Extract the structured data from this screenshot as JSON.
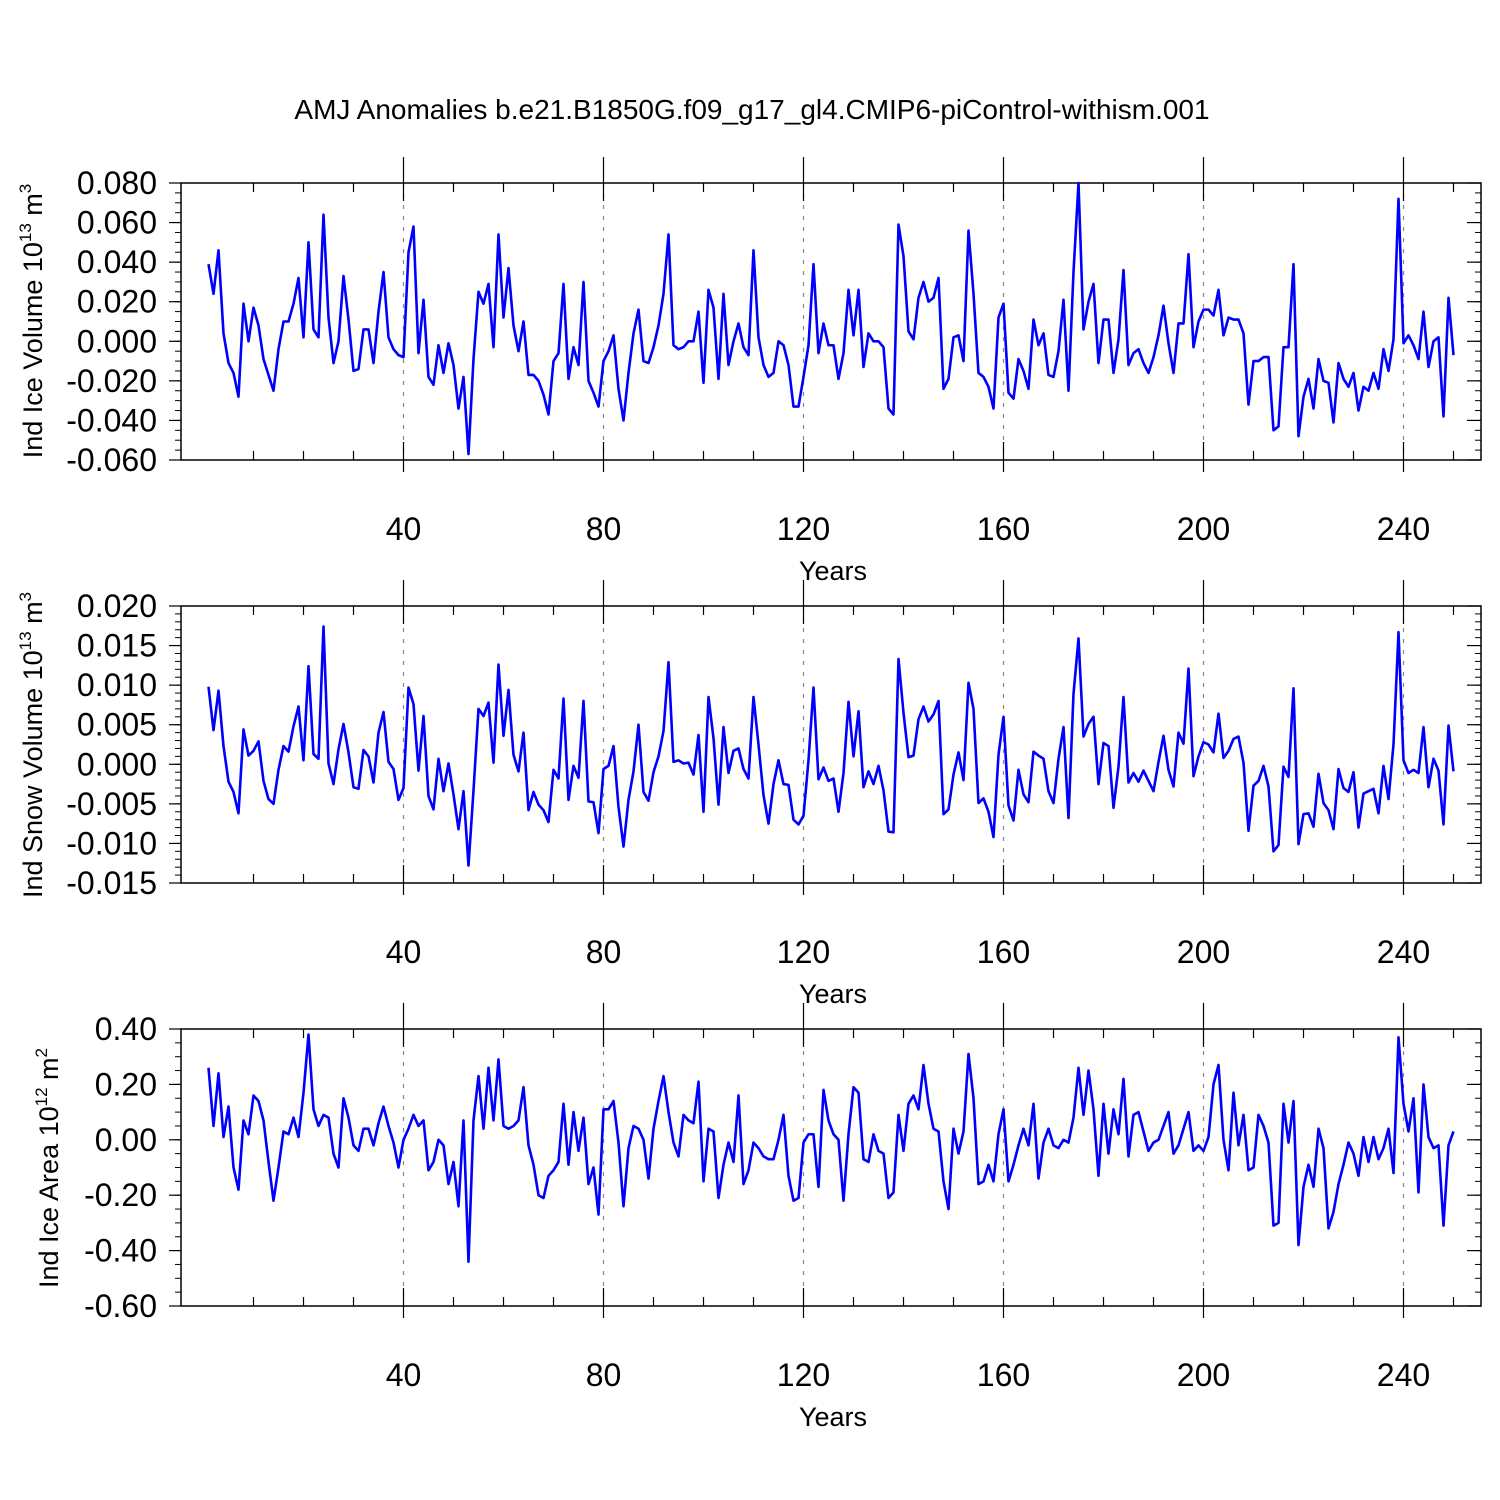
{
  "title": "AMJ Anomalies b.e21.B1850G.f09_g17_gl4.CMIP6-piControl-withism.001",
  "colors": {
    "series": "#0000ff",
    "axis": "#000000",
    "grid": "#888888",
    "background": "#ffffff"
  },
  "chart_data": [
    {
      "type": "line",
      "ylabel_main": "Ind Ice Volume 10",
      "ylabel_exp": "13",
      "ylabel_unit": " m",
      "ylabel_unit_exp": "3",
      "xlabel": "Years",
      "xlim": [
        1,
        251
      ],
      "ylim": [
        -0.06,
        0.08
      ],
      "x_ticks": [
        40,
        80,
        120,
        160,
        200,
        240
      ],
      "x_tick_labels": [
        "40",
        "80",
        "120",
        "160",
        "200",
        "240"
      ],
      "y_ticks": [
        -0.06,
        -0.04,
        -0.02,
        0.0,
        0.02,
        0.04,
        0.06,
        0.08
      ],
      "y_tick_labels": [
        "-0.060",
        "-0.040",
        "-0.020",
        "0.000",
        "0.020",
        "0.040",
        "0.060",
        "0.080"
      ],
      "y_minor_step": 0.005,
      "dashed_grid_x": [
        40,
        80,
        120,
        160,
        200,
        240
      ],
      "x_start": 1,
      "values": [
        0.039,
        0.024,
        0.046,
        0.004,
        -0.011,
        -0.016,
        -0.028,
        0.019,
        0.0,
        0.017,
        0.008,
        -0.009,
        -0.017,
        -0.025,
        -0.004,
        0.01,
        0.01,
        0.019,
        0.032,
        0.002,
        0.05,
        0.006,
        0.002,
        0.064,
        0.012,
        -0.011,
        0.0,
        0.033,
        0.011,
        -0.015,
        -0.014,
        0.006,
        0.006,
        -0.011,
        0.015,
        0.035,
        0.002,
        -0.004,
        -0.007,
        -0.008,
        0.045,
        0.058,
        -0.006,
        0.021,
        -0.018,
        -0.022,
        -0.002,
        -0.016,
        -0.001,
        -0.012,
        -0.034,
        -0.018,
        -0.057,
        -0.009,
        0.025,
        0.019,
        0.029,
        -0.003,
        0.054,
        0.012,
        0.037,
        0.008,
        -0.005,
        0.01,
        -0.017,
        -0.017,
        -0.02,
        -0.027,
        -0.037,
        -0.01,
        -0.006,
        0.029,
        -0.019,
        -0.003,
        -0.012,
        0.03,
        -0.02,
        -0.026,
        -0.033,
        -0.01,
        -0.005,
        0.003,
        -0.024,
        -0.04,
        -0.016,
        0.004,
        0.016,
        -0.01,
        -0.011,
        -0.003,
        0.008,
        0.024,
        0.054,
        -0.002,
        -0.004,
        -0.003,
        0.0,
        0.0,
        0.015,
        -0.021,
        0.026,
        0.017,
        -0.019,
        0.024,
        -0.012,
        0.0,
        0.009,
        -0.003,
        -0.007,
        0.046,
        0.002,
        -0.012,
        -0.018,
        -0.016,
        0.0,
        -0.002,
        -0.012,
        -0.033,
        -0.033,
        -0.018,
        -0.002,
        0.039,
        -0.006,
        0.009,
        -0.002,
        -0.002,
        -0.019,
        -0.006,
        0.026,
        0.003,
        0.026,
        -0.013,
        0.004,
        0.0,
        0.0,
        -0.003,
        -0.034,
        -0.037,
        0.059,
        0.043,
        0.005,
        0.001,
        0.022,
        0.03,
        0.02,
        0.022,
        0.032,
        -0.024,
        -0.019,
        0.002,
        0.003,
        -0.01,
        0.056,
        0.024,
        -0.016,
        -0.018,
        -0.023,
        -0.034,
        0.012,
        0.019,
        -0.026,
        -0.029,
        -0.009,
        -0.015,
        -0.024,
        0.011,
        -0.002,
        0.004,
        -0.017,
        -0.018,
        -0.005,
        0.021,
        -0.025,
        0.035,
        0.08,
        0.006,
        0.02,
        0.029,
        -0.011,
        0.011,
        0.011,
        -0.016,
        0.001,
        0.036,
        -0.012,
        -0.006,
        -0.004,
        -0.011,
        -0.016,
        -0.008,
        0.003,
        0.018,
        -0.001,
        -0.016,
        0.009,
        0.009,
        0.044,
        -0.003,
        0.01,
        0.016,
        0.016,
        0.013,
        0.026,
        0.003,
        0.012,
        0.011,
        0.011,
        0.004,
        -0.032,
        -0.01,
        -0.01,
        -0.008,
        -0.008,
        -0.045,
        -0.043,
        -0.003,
        -0.003,
        0.039,
        -0.048,
        -0.028,
        -0.019,
        -0.034,
        -0.009,
        -0.02,
        -0.021,
        -0.041,
        -0.011,
        -0.019,
        -0.023,
        -0.016,
        -0.035,
        -0.023,
        -0.025,
        -0.016,
        -0.024,
        -0.004,
        -0.015,
        0.001,
        0.072,
        -0.001,
        0.003,
        -0.002,
        -0.009,
        0.015,
        -0.013,
        0.0,
        0.002,
        -0.038,
        0.022,
        -0.007
      ]
    },
    {
      "type": "line",
      "ylabel_main": "Ind Snow Volume 10",
      "ylabel_exp": "13",
      "ylabel_unit": " m",
      "ylabel_unit_exp": "3",
      "xlabel": "Years",
      "xlim": [
        1,
        251
      ],
      "ylim": [
        -0.015,
        0.02
      ],
      "x_ticks": [
        40,
        80,
        120,
        160,
        200,
        240
      ],
      "x_tick_labels": [
        "40",
        "80",
        "120",
        "160",
        "200",
        "240"
      ],
      "y_ticks": [
        -0.015,
        -0.01,
        -0.005,
        0.0,
        0.005,
        0.01,
        0.015,
        0.02
      ],
      "y_tick_labels": [
        "-0.015",
        "-0.010",
        "-0.005",
        "0.000",
        "0.005",
        "0.010",
        "0.015",
        "0.020"
      ],
      "y_minor_step": 0.001,
      "dashed_grid_x": [
        40,
        80,
        120,
        160,
        200,
        240
      ],
      "x_start": 1,
      "values": [
        0.0098,
        0.0043,
        0.0093,
        0.0023,
        -0.0022,
        -0.0035,
        -0.0062,
        0.0044,
        0.0011,
        0.0017,
        0.0029,
        -0.0021,
        -0.0044,
        -0.005,
        -0.0007,
        0.0023,
        0.0016,
        0.0048,
        0.0073,
        0.0005,
        0.0124,
        0.0013,
        0.0007,
        0.0174,
        0.0001,
        -0.0025,
        0.0019,
        0.0051,
        0.0015,
        -0.0029,
        -0.0031,
        0.0018,
        0.001,
        -0.0023,
        0.004,
        0.0066,
        0.0003,
        -0.0006,
        -0.0045,
        -0.003,
        0.0097,
        0.0076,
        -0.0008,
        0.0061,
        -0.004,
        -0.0057,
        0.0007,
        -0.0034,
        0.0001,
        -0.0038,
        -0.0082,
        -0.0034,
        -0.0128,
        -0.0033,
        0.007,
        0.0061,
        0.0078,
        0.0002,
        0.0126,
        0.0036,
        0.0094,
        0.0012,
        -0.0009,
        0.004,
        -0.0058,
        -0.0035,
        -0.0051,
        -0.0058,
        -0.0073,
        -0.0007,
        -0.0018,
        0.0083,
        -0.0045,
        -0.0002,
        -0.0017,
        0.008,
        -0.0047,
        -0.0048,
        -0.0087,
        -0.0006,
        -0.0002,
        0.0023,
        -0.0054,
        -0.0104,
        -0.0045,
        -0.0009,
        0.005,
        -0.0035,
        -0.0046,
        -0.001,
        0.001,
        0.0042,
        0.0129,
        0.0003,
        0.0005,
        0.0001,
        0.0002,
        -0.0013,
        0.0037,
        -0.006,
        0.0085,
        0.0033,
        -0.0051,
        0.0047,
        -0.0011,
        0.0017,
        0.002,
        -0.0006,
        -0.0018,
        0.0085,
        0.0025,
        -0.0039,
        -0.0075,
        -0.0025,
        0.0005,
        -0.0025,
        -0.0026,
        -0.007,
        -0.0076,
        -0.0065,
        0.0005,
        0.0097,
        -0.0019,
        -0.0004,
        -0.0021,
        -0.0018,
        -0.006,
        -0.0011,
        0.0079,
        0.001,
        0.0067,
        -0.0029,
        -0.0009,
        -0.0025,
        -0.0002,
        -0.0033,
        -0.0085,
        -0.0086,
        0.0133,
        0.0065,
        0.0009,
        0.0011,
        0.0057,
        0.0073,
        0.0054,
        0.0063,
        0.008,
        -0.0063,
        -0.0057,
        -0.0013,
        0.0015,
        -0.002,
        0.0103,
        0.007,
        -0.0049,
        -0.0043,
        -0.006,
        -0.0092,
        0.0012,
        0.006,
        -0.0052,
        -0.0071,
        -0.0007,
        -0.0038,
        -0.0048,
        0.0016,
        0.0011,
        0.0007,
        -0.0034,
        -0.0049,
        0.0007,
        0.0047,
        -0.0068,
        0.0089,
        0.0159,
        0.0035,
        0.0051,
        0.006,
        -0.0025,
        0.0027,
        0.0023,
        -0.0055,
        -0.0003,
        0.0085,
        -0.0023,
        -0.0011,
        -0.0022,
        -0.0008,
        -0.0021,
        -0.0034,
        0.0003,
        0.0036,
        -0.0007,
        -0.0028,
        0.004,
        0.0026,
        0.0121,
        -0.0015,
        0.001,
        0.0028,
        0.0025,
        0.0015,
        0.0064,
        0.0008,
        0.0017,
        0.0032,
        0.0035,
        0.0002,
        -0.0084,
        -0.0027,
        -0.0021,
        -0.0002,
        -0.0028,
        -0.011,
        -0.0102,
        -0.0003,
        -0.0016,
        0.0096,
        -0.0101,
        -0.0063,
        -0.0062,
        -0.0079,
        -0.0012,
        -0.0049,
        -0.0058,
        -0.0082,
        -0.0006,
        -0.003,
        -0.0035,
        -0.001,
        -0.008,
        -0.0037,
        -0.0034,
        -0.0031,
        -0.0062,
        -0.0002,
        -0.0044,
        0.0025,
        0.0167,
        0.0005,
        -0.0011,
        -0.0007,
        -0.0011,
        0.0047,
        -0.0029,
        0.0007,
        -0.0008,
        -0.0076,
        0.0049,
        -0.0009
      ]
    },
    {
      "type": "line",
      "ylabel_main": "Ind Ice Area 10",
      "ylabel_exp": "12",
      "ylabel_unit": " m",
      "ylabel_unit_exp": "2",
      "xlabel": "Years",
      "xlim": [
        1,
        251
      ],
      "ylim": [
        -0.6,
        0.4
      ],
      "x_ticks": [
        40,
        80,
        120,
        160,
        200,
        240
      ],
      "x_tick_labels": [
        "40",
        "80",
        "120",
        "160",
        "200",
        "240"
      ],
      "y_ticks": [
        -0.6,
        -0.4,
        -0.2,
        0.0,
        0.2,
        0.4
      ],
      "y_tick_labels": [
        "-0.60",
        "-0.40",
        "-0.20",
        "0.00",
        "0.20",
        "0.40"
      ],
      "y_minor_step": 0.05,
      "dashed_grid_x": [
        40,
        80,
        120,
        160,
        200,
        240
      ],
      "x_start": 1,
      "values": [
        0.26,
        0.05,
        0.24,
        0.01,
        0.12,
        -0.1,
        -0.18,
        0.07,
        0.02,
        0.16,
        0.14,
        0.07,
        -0.08,
        -0.22,
        -0.1,
        0.03,
        0.02,
        0.08,
        0.01,
        0.17,
        0.38,
        0.11,
        0.05,
        0.09,
        0.08,
        -0.05,
        -0.1,
        0.15,
        0.08,
        -0.02,
        -0.04,
        0.04,
        0.04,
        -0.02,
        0.06,
        0.12,
        0.05,
        -0.01,
        -0.1,
        0.0,
        0.04,
        0.09,
        0.05,
        0.07,
        -0.11,
        -0.08,
        0.0,
        -0.02,
        -0.16,
        -0.08,
        -0.24,
        0.07,
        -0.44,
        0.07,
        0.23,
        0.04,
        0.26,
        0.07,
        0.29,
        0.05,
        0.04,
        0.05,
        0.07,
        0.19,
        -0.02,
        -0.09,
        -0.2,
        -0.21,
        -0.13,
        -0.11,
        -0.08,
        0.13,
        -0.09,
        0.1,
        -0.04,
        0.08,
        -0.16,
        -0.1,
        -0.27,
        0.11,
        0.11,
        0.14,
        -0.01,
        -0.24,
        -0.03,
        0.05,
        0.04,
        0.0,
        -0.14,
        0.04,
        0.14,
        0.23,
        0.1,
        -0.01,
        -0.06,
        0.09,
        0.07,
        0.06,
        0.21,
        -0.15,
        0.04,
        0.03,
        -0.21,
        -0.09,
        -0.01,
        -0.08,
        0.16,
        -0.16,
        -0.11,
        -0.01,
        -0.03,
        -0.06,
        -0.07,
        -0.07,
        0.0,
        0.09,
        -0.13,
        -0.22,
        -0.21,
        -0.01,
        0.02,
        0.02,
        -0.17,
        0.18,
        0.07,
        0.02,
        0.0,
        -0.22,
        0.02,
        0.19,
        0.17,
        -0.07,
        -0.08,
        0.02,
        -0.04,
        -0.05,
        -0.21,
        -0.19,
        0.09,
        -0.04,
        0.13,
        0.16,
        0.11,
        0.27,
        0.13,
        0.04,
        0.03,
        -0.15,
        -0.25,
        0.04,
        -0.05,
        0.03,
        0.31,
        0.15,
        -0.16,
        -0.15,
        -0.09,
        -0.15,
        0.02,
        0.11,
        -0.15,
        -0.09,
        -0.02,
        0.04,
        -0.02,
        0.13,
        -0.14,
        -0.01,
        0.04,
        -0.02,
        -0.03,
        0.0,
        -0.01,
        0.08,
        0.26,
        0.09,
        0.25,
        0.11,
        -0.13,
        0.13,
        -0.05,
        0.11,
        0.02,
        0.22,
        -0.06,
        0.09,
        0.1,
        0.03,
        -0.04,
        -0.01,
        0.0,
        0.05,
        0.1,
        -0.05,
        -0.02,
        0.04,
        0.1,
        -0.04,
        -0.02,
        -0.04,
        0.01,
        0.2,
        0.27,
        0.0,
        -0.11,
        0.17,
        -0.02,
        0.09,
        -0.11,
        -0.1,
        0.09,
        0.05,
        -0.01,
        -0.31,
        -0.3,
        0.13,
        -0.01,
        0.14,
        -0.38,
        -0.17,
        -0.09,
        -0.17,
        0.04,
        -0.03,
        -0.32,
        -0.26,
        -0.16,
        -0.09,
        -0.01,
        -0.05,
        -0.13,
        0.01,
        -0.08,
        0.01,
        -0.07,
        -0.03,
        0.04,
        -0.12,
        0.37,
        0.13,
        0.03,
        0.15,
        -0.19,
        0.2,
        0.01,
        -0.03,
        -0.02,
        -0.31,
        -0.02,
        0.03
      ]
    }
  ]
}
